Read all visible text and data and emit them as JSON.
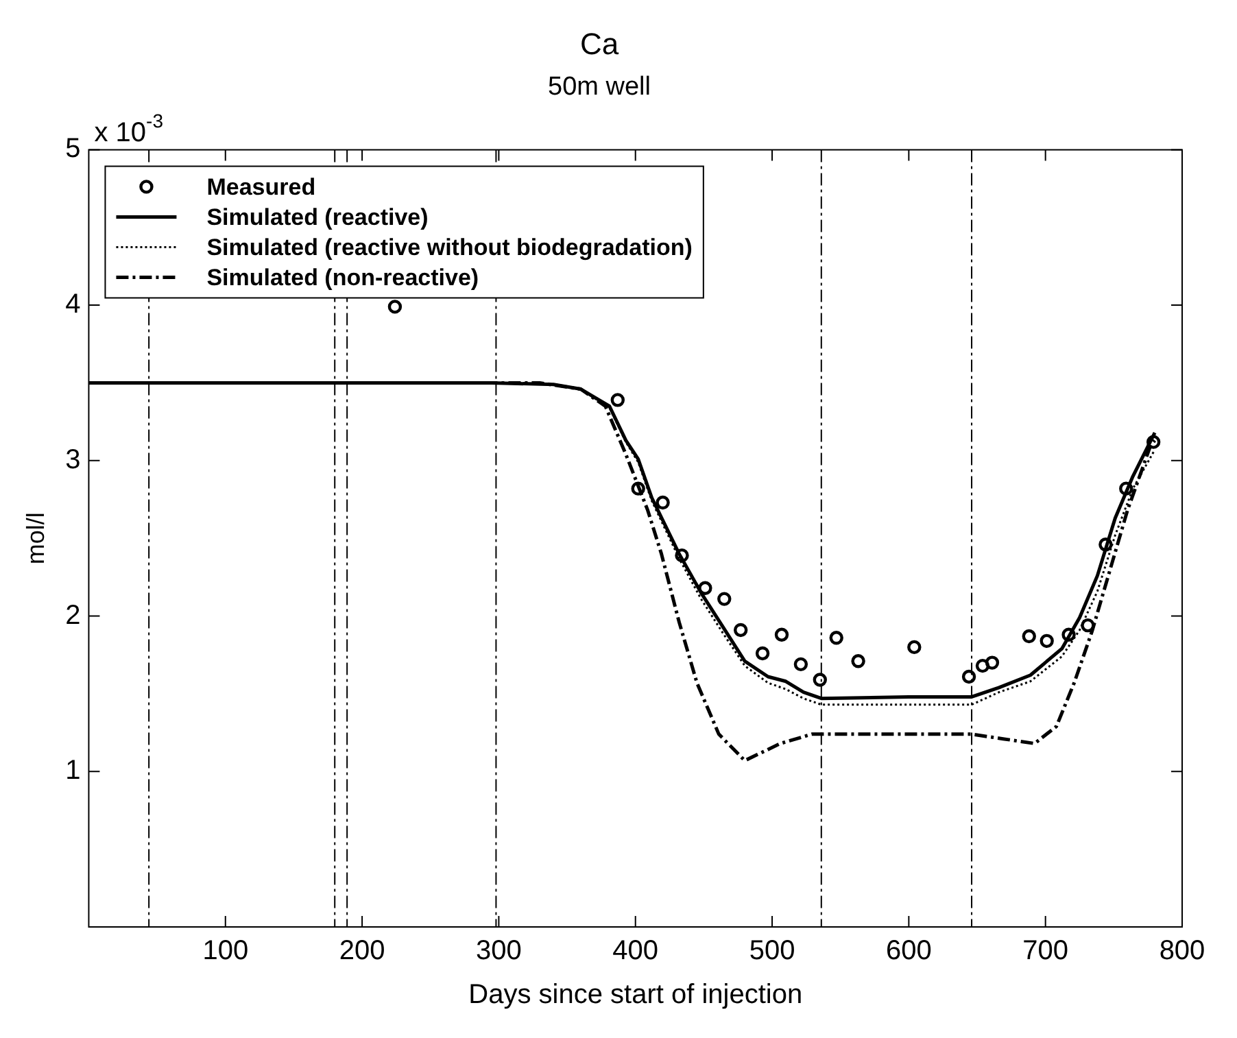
{
  "chart_data": {
    "type": "line",
    "title": "Ca",
    "subtitle": "50m well",
    "xlabel": "Days since start of injection",
    "ylabel": "mol/l",
    "annotations": [
      "x 10$^{-3}$"
    ],
    "xlim": [
      0,
      800
    ],
    "xticks": [
      100,
      200,
      300,
      400,
      500,
      600,
      700,
      800
    ],
    "ylim": [
      0,
      5
    ],
    "yticks": [
      1,
      2,
      3,
      4,
      5
    ],
    "grid": false,
    "legend": "top left",
    "series": [
      {
        "name": "Measured",
        "type": "scatter",
        "color": "#000000",
        "marker": "circle",
        "x": [
          224,
          387,
          402,
          420,
          434,
          451,
          465,
          477,
          493,
          507,
          521,
          535,
          547,
          563,
          604,
          644,
          654,
          661,
          688,
          701,
          717,
          731,
          744,
          759,
          779
        ],
        "values": [
          3.99,
          3.39,
          2.82,
          2.73,
          2.39,
          2.18,
          2.11,
          1.91,
          1.76,
          1.88,
          1.69,
          1.59,
          1.86,
          1.71,
          1.8,
          1.61,
          1.68,
          1.7,
          1.87,
          1.84,
          1.88,
          1.94,
          2.46,
          2.82,
          3.12
        ]
      },
      {
        "name": "Simulated (reactive)",
        "color": "#000000",
        "marker": "none",
        "line_style": "solid",
        "x": [
          0,
          295,
          340,
          360,
          381,
          393,
          402,
          412,
          432,
          448,
          464,
          480,
          497,
          510,
          523,
          536,
          600,
          646,
          666,
          689,
          712,
          725,
          738,
          751,
          764,
          780
        ],
        "values": [
          3.5,
          3.5,
          3.49,
          3.46,
          3.35,
          3.13,
          3.01,
          2.76,
          2.4,
          2.15,
          1.93,
          1.71,
          1.61,
          1.58,
          1.51,
          1.47,
          1.48,
          1.48,
          1.54,
          1.62,
          1.79,
          1.99,
          2.26,
          2.63,
          2.9,
          3.18
        ]
      },
      {
        "name": "Simulated (reactive without biodegradation)",
        "color": "#000000",
        "marker": "none",
        "line_style": "dotted",
        "x": [
          0,
          295,
          340,
          360,
          381,
          393,
          402,
          412,
          432,
          448,
          464,
          480,
          497,
          510,
          523,
          536,
          600,
          646,
          666,
          689,
          712,
          725,
          738,
          751,
          764,
          780
        ],
        "values": [
          3.5,
          3.5,
          3.49,
          3.46,
          3.34,
          3.12,
          2.99,
          2.74,
          2.37,
          2.11,
          1.89,
          1.68,
          1.57,
          1.53,
          1.47,
          1.43,
          1.43,
          1.43,
          1.51,
          1.58,
          1.74,
          1.91,
          2.16,
          2.52,
          2.82,
          3.07
        ]
      },
      {
        "name": "Simulated (non-reactive)",
        "color": "#000000",
        "marker": "none",
        "line_style": "dashed",
        "x": [
          0,
          330,
          360,
          378,
          393,
          409,
          419,
          432,
          445,
          461,
          480,
          506,
          529,
          600,
          646,
          669,
          692,
          708,
          721,
          734,
          747,
          760,
          777,
          780
        ],
        "values": [
          3.5,
          3.5,
          3.46,
          3.35,
          3.04,
          2.68,
          2.4,
          1.96,
          1.57,
          1.24,
          1.07,
          1.18,
          1.24,
          1.24,
          1.24,
          1.21,
          1.18,
          1.29,
          1.57,
          1.9,
          2.29,
          2.68,
          3.1,
          3.13
        ]
      }
    ],
    "ref_lines": [
      {
        "axis": "x",
        "value": 44,
        "line_style": "dashed"
      },
      {
        "axis": "x",
        "value": 180,
        "line_style": "dashed"
      },
      {
        "axis": "x",
        "value": 189,
        "line_style": "dashed"
      },
      {
        "axis": "x",
        "value": 298,
        "line_style": "dashed"
      },
      {
        "axis": "x",
        "value": 536,
        "line_style": "dashed"
      },
      {
        "axis": "x",
        "value": 646,
        "line_style": "dashed"
      }
    ]
  }
}
